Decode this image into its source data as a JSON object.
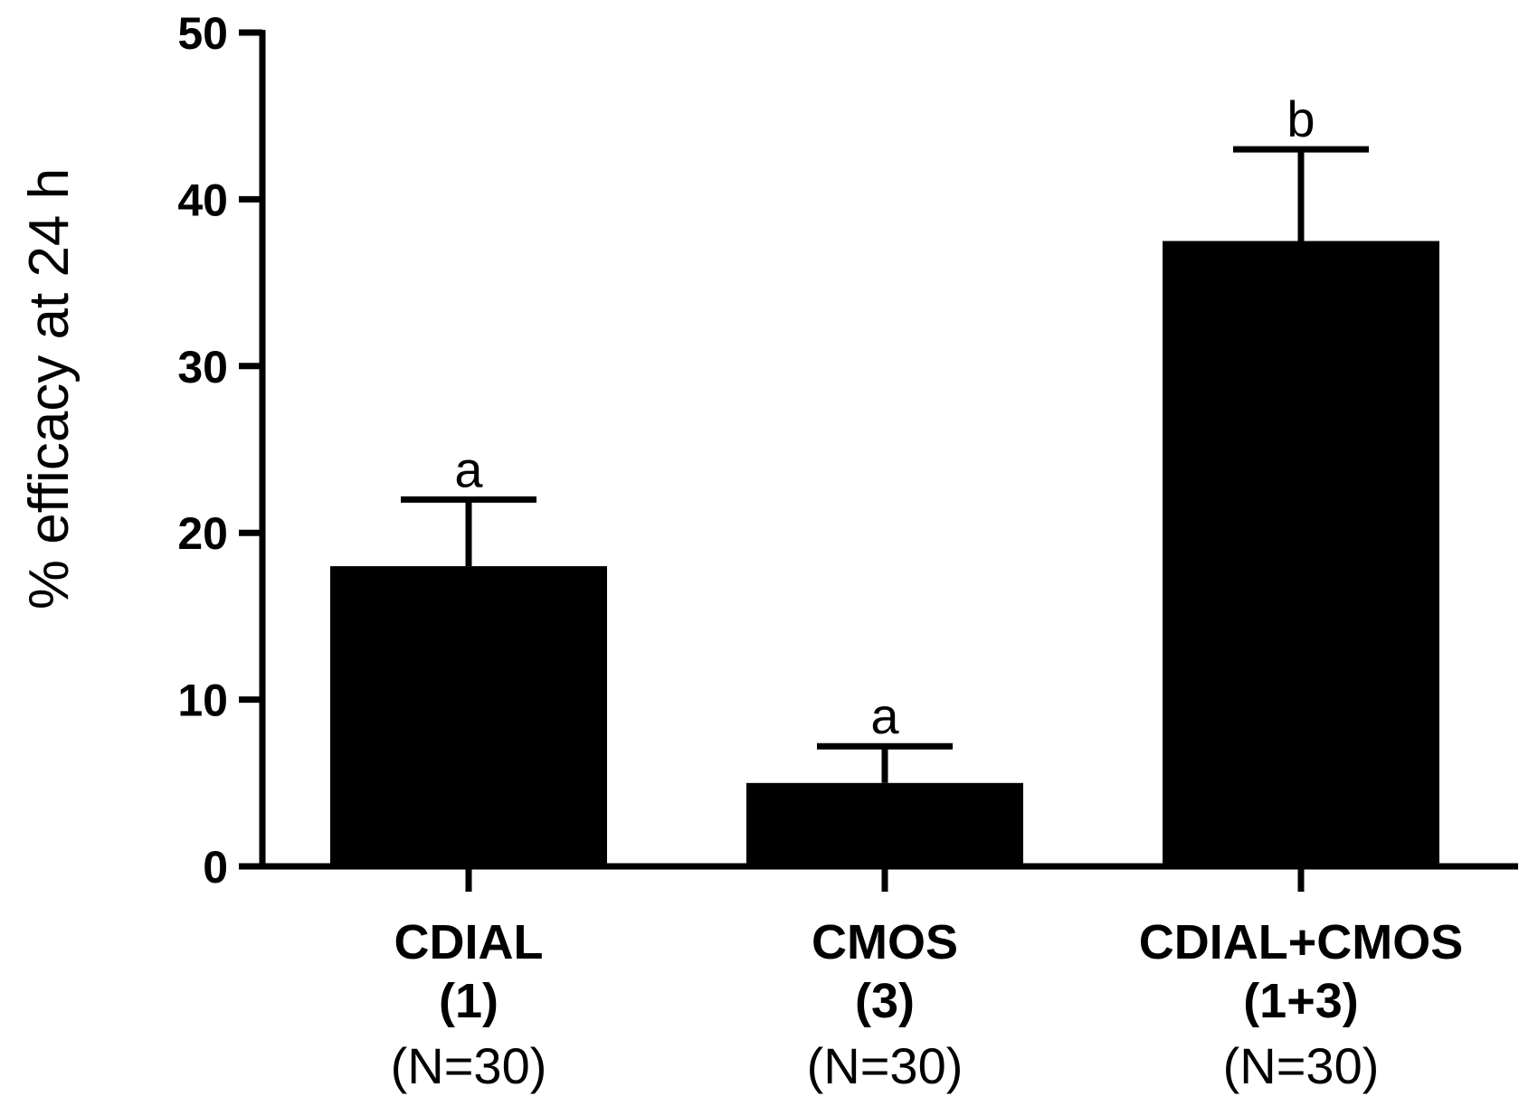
{
  "chart_data": {
    "type": "bar",
    "ylabel": "% efficacy at 24 h",
    "ylim": [
      0,
      50
    ],
    "yticks": [
      0,
      10,
      20,
      30,
      40,
      50
    ],
    "categories": [
      {
        "name": "CDIAL",
        "code": "(1)",
        "n": "(N=30)"
      },
      {
        "name": "CMOS",
        "code": "(3)",
        "n": "(N=30)"
      },
      {
        "name": "CDIAL+CMOS",
        "code": "(1+3)",
        "n": "(N=30)"
      }
    ],
    "values": [
      18,
      5,
      37.5
    ],
    "errors": [
      4,
      2.2,
      5.5
    ],
    "significance": [
      "a",
      "a",
      "b"
    ],
    "bar_color": "#000000",
    "grid": false,
    "legend": "none"
  }
}
